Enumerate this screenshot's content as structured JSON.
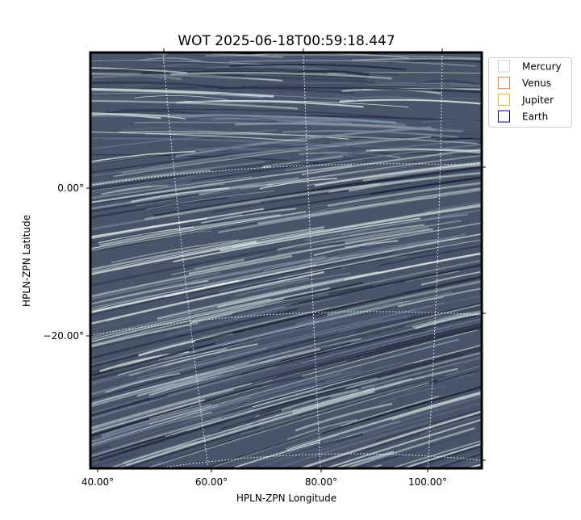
{
  "title": "WOT 2025-06-18T00:59:18.447",
  "x_axis": {
    "label": "HPLN-ZPN Longitude",
    "ticks": [
      "40.00°",
      "60.00°",
      "80.00°",
      "100.00°"
    ]
  },
  "y_axis": {
    "label": "HPLN-ZPN Latitude",
    "ticks": [
      "0.00°",
      "−20.00°"
    ]
  },
  "legend": [
    {
      "label": "Mercury",
      "color": "#d3d3d3"
    },
    {
      "label": "Venus",
      "color": "#e0803a"
    },
    {
      "label": "Jupiter",
      "color": "#e8b420"
    },
    {
      "label": "Earth",
      "color": "#000080"
    }
  ]
}
